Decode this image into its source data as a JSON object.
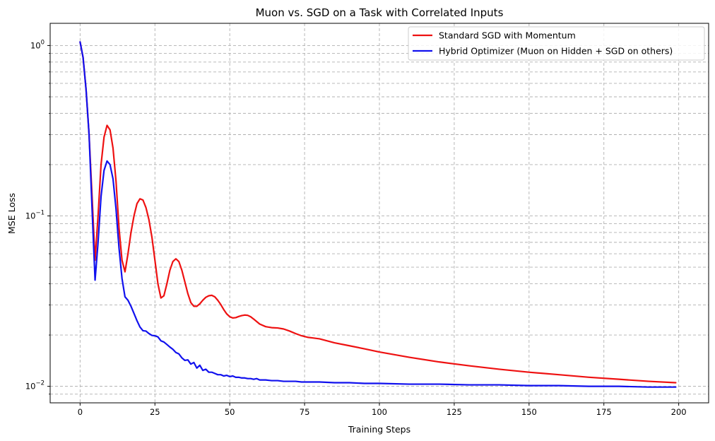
{
  "chart_data": {
    "type": "line",
    "title": "Muon vs. SGD on a Task with Correlated Inputs",
    "xlabel": "Training Steps",
    "ylabel": "MSE Loss",
    "xlim": [
      -10,
      210
    ],
    "ylim": [
      0.008,
      1.35
    ],
    "yscale": "log",
    "grid": true,
    "legend_position": "top-right",
    "x_ticks": [
      0,
      25,
      50,
      75,
      100,
      125,
      150,
      175,
      200
    ],
    "x_tick_labels": [
      "0",
      "25",
      "50",
      "75",
      "100",
      "125",
      "150",
      "175",
      "200"
    ],
    "y_ticks": [
      0.01,
      0.1,
      1
    ],
    "y_tick_labels": [
      "10",
      "10",
      "10"
    ],
    "y_tick_exponents": [
      "−2",
      "−1",
      "0"
    ],
    "series": [
      {
        "name": "Standard SGD with Momentum",
        "color": "#ee1111",
        "x": [
          0,
          1,
          2,
          3,
          4,
          5,
          6,
          7,
          8,
          9,
          10,
          11,
          12,
          13,
          14,
          15,
          16,
          17,
          18,
          19,
          20,
          21,
          22,
          23,
          24,
          25,
          26,
          27,
          28,
          29,
          30,
          31,
          32,
          33,
          34,
          35,
          36,
          37,
          38,
          39,
          40,
          41,
          42,
          43,
          44,
          45,
          46,
          47,
          48,
          49,
          50,
          51,
          52,
          53,
          54,
          55,
          56,
          57,
          58,
          59,
          60,
          62,
          64,
          66,
          68,
          70,
          72,
          74,
          76,
          78,
          80,
          85,
          90,
          95,
          100,
          110,
          120,
          130,
          140,
          150,
          160,
          170,
          180,
          190,
          199
        ],
        "values": [
          1.05,
          0.85,
          0.55,
          0.3,
          0.13,
          0.055,
          0.1,
          0.2,
          0.29,
          0.34,
          0.32,
          0.25,
          0.16,
          0.085,
          0.055,
          0.047,
          0.06,
          0.08,
          0.1,
          0.118,
          0.126,
          0.124,
          0.112,
          0.095,
          0.075,
          0.055,
          0.04,
          0.033,
          0.034,
          0.04,
          0.048,
          0.054,
          0.056,
          0.054,
          0.048,
          0.041,
          0.035,
          0.031,
          0.0295,
          0.0295,
          0.0305,
          0.032,
          0.0333,
          0.034,
          0.0342,
          0.0335,
          0.032,
          0.0302,
          0.0282,
          0.0266,
          0.0256,
          0.0252,
          0.0253,
          0.0257,
          0.026,
          0.0262,
          0.0261,
          0.0256,
          0.0248,
          0.024,
          0.0232,
          0.0224,
          0.0221,
          0.022,
          0.0217,
          0.0211,
          0.0204,
          0.0198,
          0.0194,
          0.0192,
          0.019,
          0.018,
          0.0173,
          0.0166,
          0.0159,
          0.0148,
          0.0139,
          0.0132,
          0.0126,
          0.0121,
          0.0117,
          0.0113,
          0.011,
          0.0107,
          0.0105
        ]
      },
      {
        "name": "Hybrid Optimizer (Muon on Hidden + SGD on others)",
        "color": "#1111ee",
        "x": [
          0,
          1,
          2,
          3,
          4,
          5,
          6,
          7,
          8,
          9,
          10,
          11,
          12,
          13,
          14,
          15,
          16,
          17,
          18,
          19,
          20,
          21,
          22,
          23,
          24,
          25,
          26,
          27,
          28,
          29,
          30,
          31,
          32,
          33,
          34,
          35,
          36,
          37,
          38,
          39,
          40,
          41,
          42,
          43,
          44,
          45,
          46,
          47,
          48,
          49,
          50,
          51,
          52,
          53,
          54,
          55,
          56,
          57,
          58,
          59,
          60,
          62,
          64,
          66,
          68,
          70,
          72,
          74,
          76,
          78,
          80,
          85,
          90,
          95,
          100,
          110,
          120,
          130,
          140,
          150,
          160,
          170,
          180,
          190,
          199
        ],
        "values": [
          1.05,
          0.85,
          0.55,
          0.3,
          0.11,
          0.042,
          0.07,
          0.13,
          0.185,
          0.21,
          0.2,
          0.165,
          0.11,
          0.065,
          0.043,
          0.0335,
          0.032,
          0.0295,
          0.0268,
          0.0243,
          0.0223,
          0.0212,
          0.0211,
          0.0204,
          0.0199,
          0.0198,
          0.0195,
          0.0185,
          0.0182,
          0.0176,
          0.017,
          0.0165,
          0.0158,
          0.0155,
          0.0147,
          0.0142,
          0.0143,
          0.0135,
          0.0138,
          0.0128,
          0.0133,
          0.0124,
          0.0126,
          0.0121,
          0.0121,
          0.0119,
          0.0117,
          0.0117,
          0.0115,
          0.0116,
          0.0114,
          0.0115,
          0.0113,
          0.0113,
          0.0112,
          0.0112,
          0.0111,
          0.0111,
          0.011,
          0.0111,
          0.0109,
          0.0109,
          0.0108,
          0.0108,
          0.0107,
          0.0107,
          0.0107,
          0.0106,
          0.0106,
          0.0106,
          0.0106,
          0.0105,
          0.0105,
          0.0104,
          0.0104,
          0.0103,
          0.0103,
          0.0102,
          0.0102,
          0.0101,
          0.0101,
          0.01,
          0.01,
          0.0099,
          0.0099
        ]
      }
    ]
  }
}
